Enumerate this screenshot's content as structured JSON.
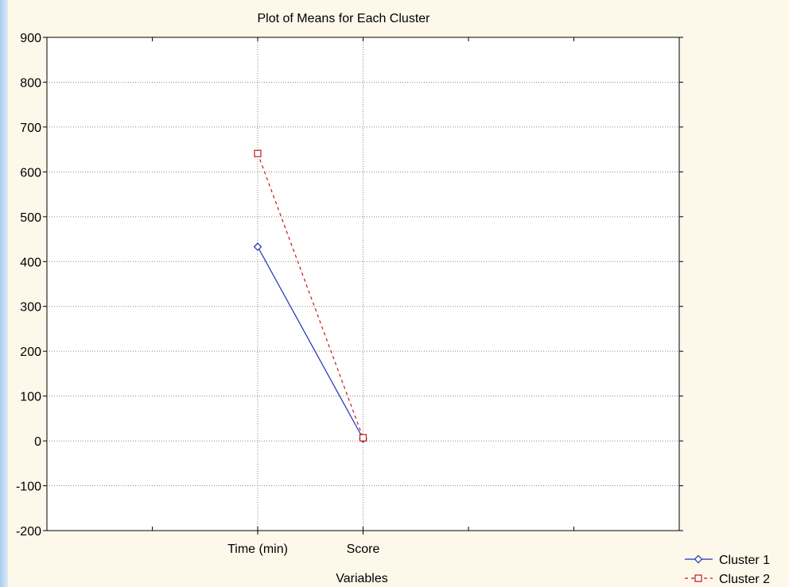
{
  "chart_data": {
    "type": "line",
    "title": "Plot of Means for Each Cluster",
    "xlabel": "Variables",
    "ylabel": "",
    "categories": [
      "Time (min)",
      "Score"
    ],
    "ylim": [
      -200,
      900
    ],
    "yticks": [
      900,
      800,
      700,
      600,
      500,
      400,
      300,
      200,
      100,
      0,
      -100,
      -200
    ],
    "grid": true,
    "legend_position": "bottom-right",
    "series": [
      {
        "name": "Cluster 1",
        "values": [
          433,
          5
        ],
        "color": "#1f2fae",
        "marker": "diamond",
        "line_style": "solid"
      },
      {
        "name": "Cluster 2",
        "values": [
          641,
          7
        ],
        "color": "#c01818",
        "marker": "square",
        "line_style": "dashed"
      }
    ]
  },
  "colors": {
    "panel_background": "#fdf8ea",
    "plot_background": "#ffffff",
    "grid": "#8a8a8a",
    "axis": "#000000"
  }
}
